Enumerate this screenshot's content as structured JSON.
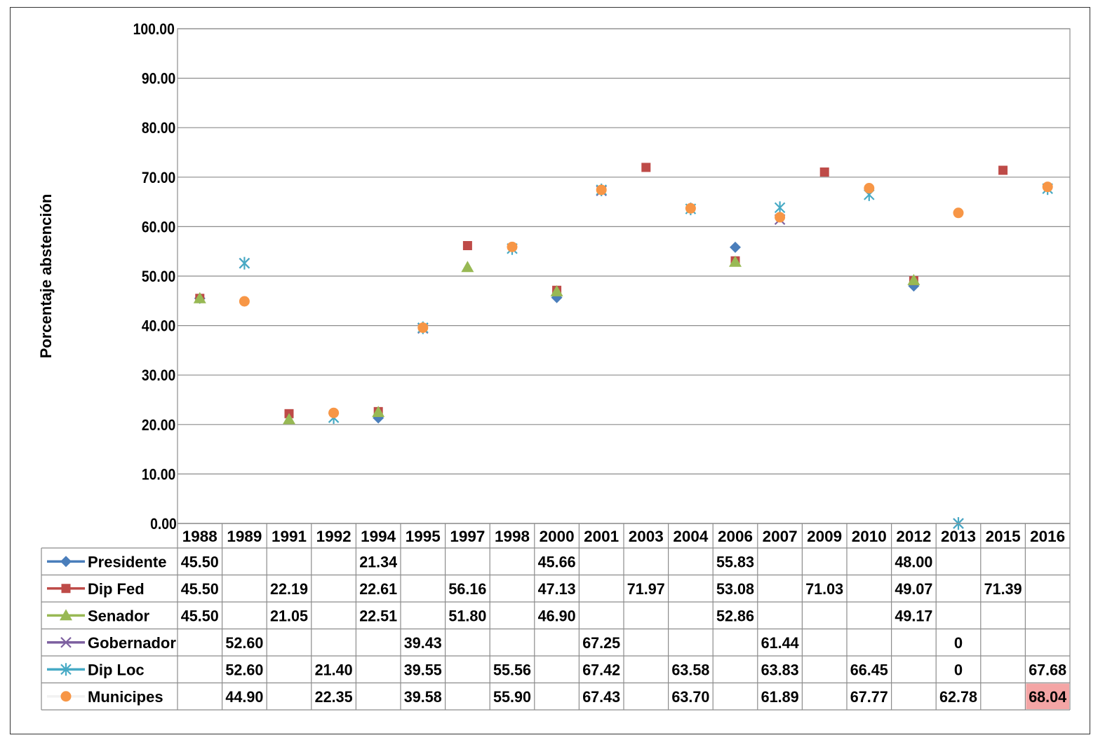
{
  "chart_data": {
    "type": "scatter",
    "title": "",
    "xlabel": "",
    "ylabel": "Porcentaje abstención",
    "ylim": [
      0,
      100
    ],
    "y_ticks": [
      "0.00",
      "10.00",
      "20.00",
      "30.00",
      "40.00",
      "50.00",
      "60.00",
      "70.00",
      "80.00",
      "90.00",
      "100.00"
    ],
    "grid": true,
    "legend": "data-table-left",
    "categories": [
      "1988",
      "1989",
      "1991",
      "1992",
      "1994",
      "1995",
      "1997",
      "1998",
      "2000",
      "2001",
      "2003",
      "2004",
      "2006",
      "2007",
      "2009",
      "2010",
      "2012",
      "2013",
      "2015",
      "2016"
    ],
    "series": [
      {
        "name": "Presidente",
        "color": "#4a7ebb",
        "marker": "diamond",
        "values": [
          45.5,
          null,
          null,
          null,
          21.34,
          null,
          null,
          null,
          45.66,
          null,
          null,
          null,
          55.83,
          null,
          null,
          null,
          48.0,
          null,
          null,
          null
        ],
        "labels": [
          "45.50",
          "",
          "",
          "",
          "21.34",
          "",
          "",
          "",
          "45.66",
          "",
          "",
          "",
          "55.83",
          "",
          "",
          "",
          "48.00",
          "",
          "",
          ""
        ]
      },
      {
        "name": "Dip Fed",
        "color": "#be4b48",
        "marker": "square",
        "values": [
          45.5,
          null,
          22.19,
          null,
          22.61,
          null,
          56.16,
          null,
          47.13,
          null,
          71.97,
          null,
          53.08,
          null,
          71.03,
          null,
          49.07,
          null,
          71.39,
          null
        ],
        "labels": [
          "45.50",
          "",
          "22.19",
          "",
          "22.61",
          "",
          "56.16",
          "",
          "47.13",
          "",
          "71.97",
          "",
          "53.08",
          "",
          "71.03",
          "",
          "49.07",
          "",
          "71.39",
          ""
        ]
      },
      {
        "name": "Senador",
        "color": "#98b954",
        "marker": "triangle",
        "values": [
          45.5,
          null,
          21.05,
          null,
          22.51,
          null,
          51.8,
          null,
          46.9,
          null,
          null,
          null,
          52.86,
          null,
          null,
          null,
          49.17,
          null,
          null,
          null
        ],
        "labels": [
          "45.50",
          "",
          "21.05",
          "",
          "22.51",
          "",
          "51.80",
          "",
          "46.90",
          "",
          "",
          "",
          "52.86",
          "",
          "",
          "",
          "49.17",
          "",
          "",
          ""
        ]
      },
      {
        "name": "Gobernador",
        "color": "#7d60a0",
        "marker": "x",
        "values": [
          null,
          52.6,
          null,
          null,
          null,
          39.43,
          null,
          null,
          null,
          67.25,
          null,
          null,
          null,
          61.44,
          null,
          null,
          null,
          0,
          null,
          null
        ],
        "labels": [
          "",
          "52.60",
          "",
          "",
          "",
          "39.43",
          "",
          "",
          "",
          "67.25",
          "",
          "",
          "",
          "61.44",
          "",
          "",
          "",
          "0",
          "",
          ""
        ]
      },
      {
        "name": "Dip Loc",
        "color": "#46aac5",
        "marker": "star",
        "values": [
          null,
          52.6,
          null,
          21.4,
          null,
          39.55,
          null,
          55.56,
          null,
          67.42,
          null,
          63.58,
          null,
          63.83,
          null,
          66.45,
          null,
          0,
          null,
          67.68
        ],
        "labels": [
          "",
          "52.60",
          "",
          "21.40",
          "",
          "39.55",
          "",
          "55.56",
          "",
          "67.42",
          "",
          "63.58",
          "",
          "63.83",
          "",
          "66.45",
          "",
          "0",
          "",
          "67.68"
        ]
      },
      {
        "name": "Municipes",
        "color": "#f79646",
        "marker": "circle",
        "values": [
          null,
          44.9,
          null,
          22.35,
          null,
          39.58,
          null,
          55.9,
          null,
          67.43,
          null,
          63.7,
          null,
          61.89,
          null,
          67.77,
          null,
          62.78,
          null,
          68.04
        ],
        "labels": [
          "",
          "44.90",
          "",
          "22.35",
          "",
          "39.58",
          "",
          "55.90",
          "",
          "67.43",
          "",
          "63.70",
          "",
          "61.89",
          "",
          "67.77",
          "",
          "62.78",
          "",
          "68.04"
        ]
      }
    ],
    "highlight_cell": {
      "series": "Municipes",
      "category": "2016",
      "color": "#f4a5a5"
    }
  }
}
